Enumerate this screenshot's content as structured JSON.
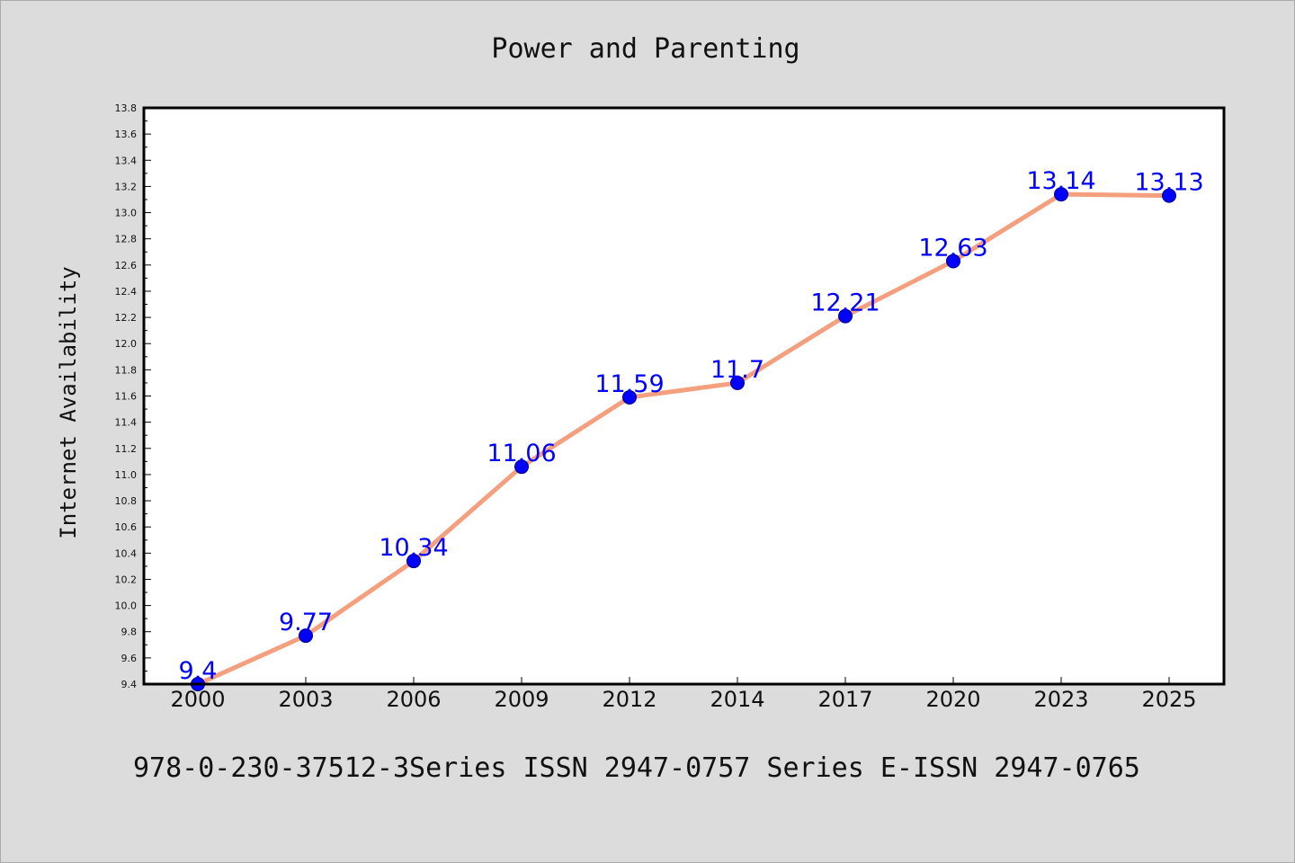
{
  "title": "Power and Parenting",
  "footer": "978-0-230-37512-3Series ISSN 2947-0757 Series E-ISSN 2947-0765",
  "colors": {
    "background": "#dcdcdc",
    "plot_background": "#ffffff",
    "line": "#f4a07f",
    "marker": "#0000ff",
    "data_label": "#0000ff"
  },
  "chart_data": {
    "type": "line",
    "title": "Power and Parenting",
    "xlabel": "",
    "ylabel": "Internet Availability",
    "ylim": [
      9.4,
      13.8
    ],
    "yticks": [
      "9.4",
      "9.6",
      "9.8",
      "10.0",
      "10.2",
      "10.4",
      "10.6",
      "10.8",
      "11.0",
      "11.2",
      "11.4",
      "11.6",
      "11.8",
      "12.0",
      "12.2",
      "12.4",
      "12.6",
      "12.8",
      "13.0",
      "13.2",
      "13.4",
      "13.6",
      "13.8"
    ],
    "categories": [
      "2000",
      "2003",
      "2006",
      "2009",
      "2012",
      "2014",
      "2017",
      "2020",
      "2023",
      "2025"
    ],
    "series": [
      {
        "values": [
          9.4,
          9.77,
          10.34,
          11.06,
          11.59,
          11.7,
          12.21,
          12.63,
          13.14,
          13.13
        ],
        "labels": [
          "9.4",
          "9.77",
          "10.34",
          "11.06",
          "11.59",
          "11.7",
          "12.21",
          "12.63",
          "13.14",
          "13.13"
        ]
      }
    ],
    "grid": false,
    "legend": "none"
  }
}
